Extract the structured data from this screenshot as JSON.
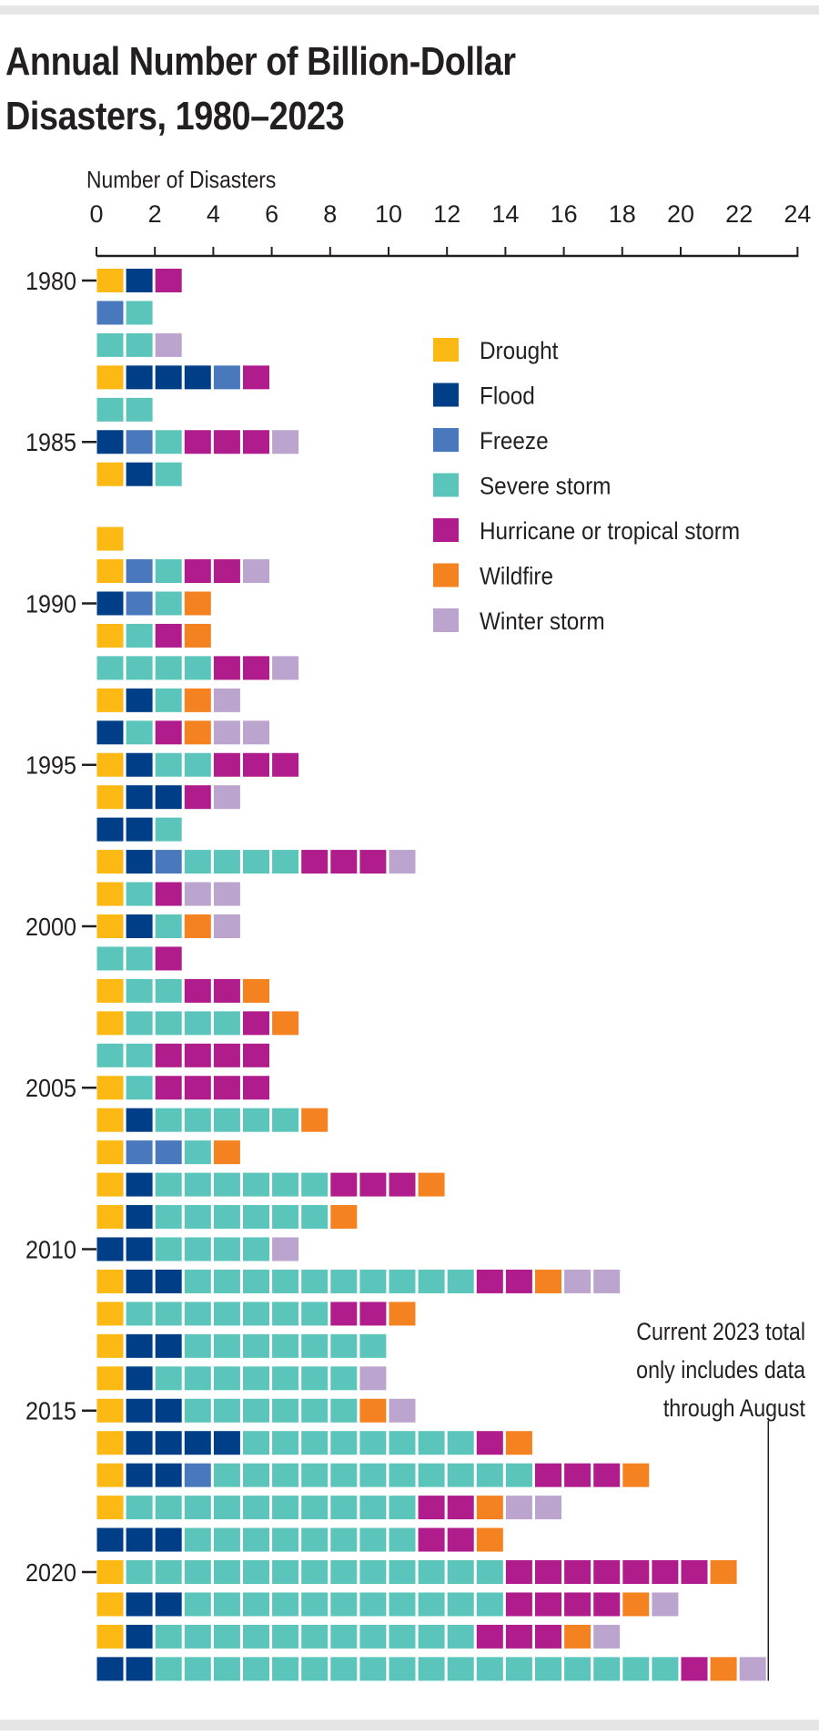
{
  "chart_data": {
    "type": "bar",
    "title": "Annual Number of Billion-Dollar Disasters, 1980–2023",
    "xlabel": "Number of Disasters",
    "xlim": [
      0,
      24
    ],
    "x_ticks": [
      "0",
      "2",
      "4",
      "6",
      "8",
      "10",
      "12",
      "14",
      "16",
      "18",
      "20",
      "22",
      "24"
    ],
    "y_tick_labels": [
      "1980",
      "1985",
      "1990",
      "1995",
      "2000",
      "2005",
      "2010",
      "2015",
      "2020"
    ],
    "orientation": "horizontal-stacked-units",
    "legend_position": "top-right",
    "categories": [
      "1980",
      "1981",
      "1982",
      "1983",
      "1984",
      "1985",
      "1986",
      "1987",
      "1988",
      "1989",
      "1990",
      "1991",
      "1992",
      "1993",
      "1994",
      "1995",
      "1996",
      "1997",
      "1998",
      "1999",
      "2000",
      "2001",
      "2002",
      "2003",
      "2004",
      "2005",
      "2006",
      "2007",
      "2008",
      "2009",
      "2010",
      "2011",
      "2012",
      "2013",
      "2014",
      "2015",
      "2016",
      "2017",
      "2018",
      "2019",
      "2020",
      "2021",
      "2022",
      "2023"
    ],
    "series": [
      {
        "name": "Drought",
        "color": "#fdb913",
        "values": [
          1,
          0,
          0,
          1,
          0,
          0,
          1,
          0,
          1,
          1,
          0,
          1,
          0,
          1,
          0,
          1,
          1,
          0,
          1,
          1,
          1,
          0,
          1,
          1,
          0,
          1,
          1,
          1,
          1,
          1,
          0,
          1,
          1,
          1,
          1,
          1,
          1,
          1,
          1,
          0,
          1,
          1,
          1,
          0
        ]
      },
      {
        "name": "Flood",
        "color": "#003f87",
        "values": [
          1,
          0,
          0,
          3,
          0,
          1,
          1,
          0,
          0,
          0,
          1,
          0,
          0,
          1,
          1,
          1,
          2,
          2,
          1,
          0,
          1,
          0,
          0,
          0,
          0,
          0,
          1,
          0,
          1,
          1,
          2,
          2,
          0,
          2,
          1,
          2,
          4,
          2,
          0,
          3,
          0,
          2,
          1,
          2
        ]
      },
      {
        "name": "Freeze",
        "color": "#4a78bd",
        "values": [
          0,
          1,
          0,
          1,
          0,
          1,
          0,
          0,
          0,
          1,
          1,
          0,
          0,
          0,
          0,
          0,
          0,
          0,
          1,
          0,
          0,
          0,
          0,
          0,
          0,
          0,
          0,
          2,
          0,
          0,
          0,
          0,
          0,
          0,
          0,
          0,
          0,
          1,
          0,
          0,
          0,
          0,
          0,
          0
        ]
      },
      {
        "name": "Severe storm",
        "color": "#5bc5bc",
        "values": [
          0,
          1,
          2,
          0,
          2,
          1,
          1,
          0,
          0,
          1,
          1,
          1,
          4,
          1,
          1,
          2,
          0,
          1,
          4,
          1,
          1,
          2,
          2,
          4,
          2,
          1,
          5,
          1,
          6,
          6,
          4,
          10,
          7,
          7,
          7,
          6,
          8,
          11,
          10,
          8,
          13,
          11,
          11,
          18
        ]
      },
      {
        "name": "Hurricane or tropical storm",
        "color": "#b01c8b",
        "values": [
          1,
          0,
          0,
          1,
          0,
          3,
          0,
          0,
          0,
          2,
          0,
          1,
          2,
          0,
          1,
          3,
          1,
          0,
          3,
          1,
          0,
          1,
          2,
          1,
          4,
          4,
          0,
          0,
          3,
          0,
          0,
          2,
          2,
          0,
          0,
          0,
          1,
          3,
          2,
          2,
          7,
          4,
          3,
          1
        ]
      },
      {
        "name": "Wildfire",
        "color": "#f58220",
        "values": [
          0,
          0,
          0,
          0,
          0,
          0,
          0,
          0,
          0,
          0,
          1,
          1,
          0,
          1,
          1,
          0,
          0,
          0,
          0,
          0,
          1,
          0,
          1,
          1,
          0,
          0,
          1,
          1,
          1,
          1,
          0,
          1,
          1,
          0,
          0,
          1,
          1,
          1,
          1,
          1,
          1,
          1,
          1,
          1
        ]
      },
      {
        "name": "Winter storm",
        "color": "#bba5cf",
        "values": [
          0,
          0,
          1,
          0,
          0,
          1,
          0,
          0,
          0,
          1,
          0,
          0,
          1,
          1,
          2,
          0,
          1,
          0,
          1,
          2,
          1,
          0,
          0,
          0,
          0,
          0,
          0,
          0,
          0,
          0,
          1,
          2,
          0,
          0,
          1,
          1,
          0,
          0,
          2,
          0,
          0,
          1,
          1,
          1
        ]
      }
    ],
    "annotation": [
      "Current 2023 total",
      "only includes data",
      "through August"
    ]
  }
}
